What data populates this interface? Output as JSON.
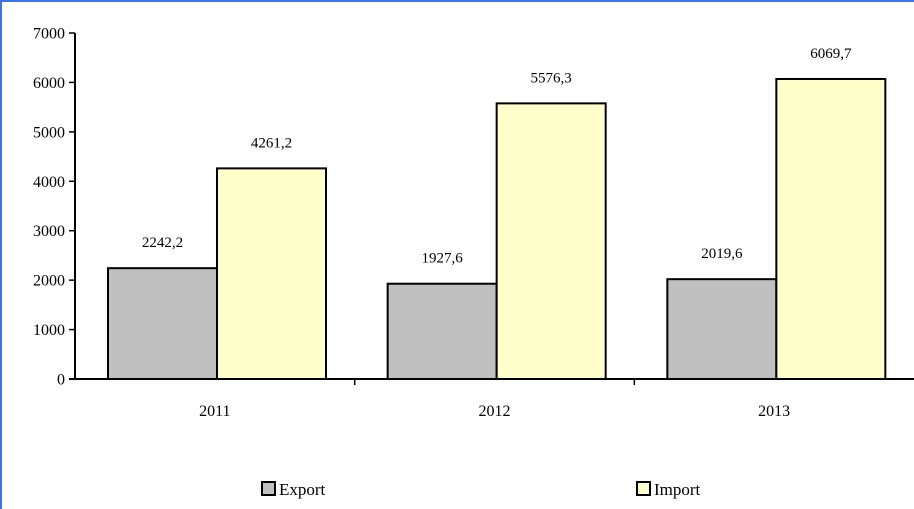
{
  "chart_data": {
    "type": "bar",
    "categories": [
      "2011",
      "2012",
      "2013"
    ],
    "series": [
      {
        "name": "Export",
        "values": [
          2242.2,
          1927.6,
          2019.6
        ],
        "labels": [
          "2242,2",
          "1927,6",
          "2019,6"
        ],
        "color": "#c0c0c0"
      },
      {
        "name": "Import",
        "values": [
          4261.2,
          5576.3,
          6069.7
        ],
        "labels": [
          "4261,2",
          "5576,3",
          "6069,7"
        ],
        "color": "#ffffcc"
      }
    ],
    "ylim": [
      0,
      7000
    ],
    "yticks": [
      "0",
      "1000",
      "2000",
      "3000",
      "4000",
      "5000",
      "6000",
      "7000"
    ],
    "grid": false,
    "legend": "bottom",
    "title": "",
    "xlabel": "",
    "ylabel": ""
  },
  "colors": {
    "frame_accent": "#3a73ea",
    "bar_stroke": "#000000"
  }
}
